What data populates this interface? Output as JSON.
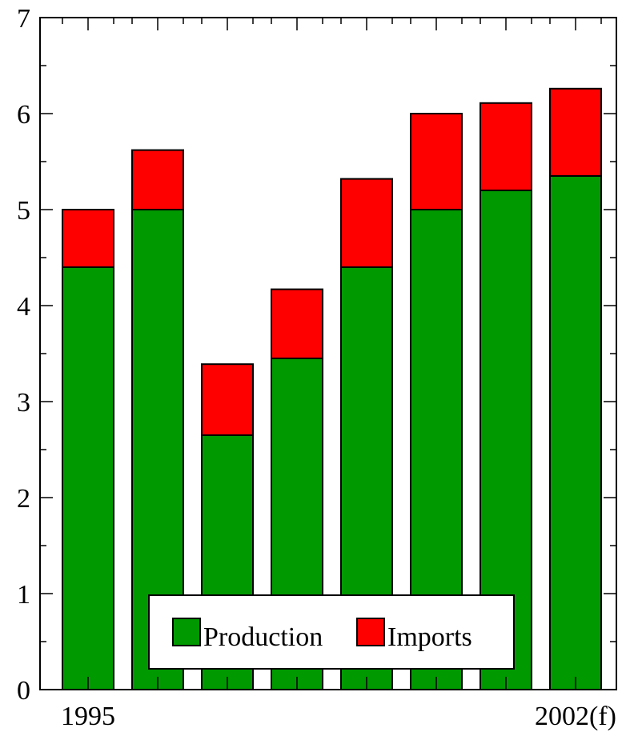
{
  "chart_data": {
    "type": "bar",
    "stacked": true,
    "categories": [
      "1995",
      "",
      "",
      "",
      "",
      "",
      "",
      "2002(f)"
    ],
    "series": [
      {
        "name": "Production",
        "values": [
          4.4,
          5.0,
          2.65,
          3.45,
          4.4,
          5.0,
          5.2,
          5.35
        ],
        "color": "#009900"
      },
      {
        "name": "Imports",
        "values": [
          0.6,
          0.62,
          0.74,
          0.72,
          0.92,
          1.0,
          0.91,
          0.91
        ],
        "color": "#ff0000"
      }
    ],
    "ylim": [
      0,
      7
    ],
    "y_ticks": [
      "0",
      "1",
      "2",
      "3",
      "4",
      "5",
      "6",
      "7"
    ],
    "xlabel": "",
    "ylabel": "",
    "title": "",
    "grid": false,
    "legend_position": "bottom-center"
  }
}
